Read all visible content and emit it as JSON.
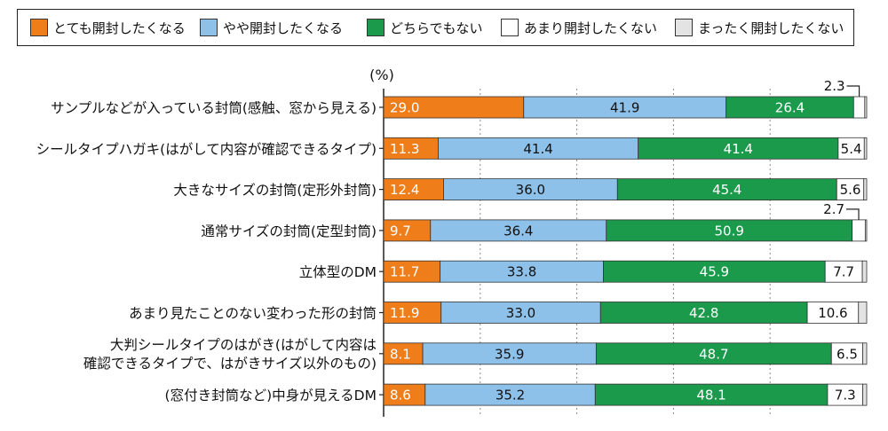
{
  "chart_data": {
    "type": "bar",
    "orientation": "horizontal",
    "stacked": true,
    "unit_label": "(%)",
    "xlim": [
      0,
      100
    ],
    "grid": true,
    "legend_position": "top",
    "categories": [
      [
        "サンプルなどが入っている封筒(感触、窓から見える)"
      ],
      [
        "シールタイプハガキ(はがして内容が確認できるタイプ)"
      ],
      [
        "大きなサイズの封筒(定形外封筒)"
      ],
      [
        "通常サイズの封筒(定型封筒)"
      ],
      [
        "立体型のDM"
      ],
      [
        "あまり見たことのない変わった形の封筒"
      ],
      [
        "大判シールタイプのはがき(はがして内容は",
        "確認できるタイプで、はがきサイズ以外のもの)"
      ],
      [
        "(窓付き封筒など)中身が見えるDM"
      ]
    ],
    "series": [
      {
        "name": "とても開封したくなる",
        "color": "#ee7d1a",
        "values": [
          29.0,
          11.3,
          12.4,
          9.7,
          11.7,
          11.9,
          8.1,
          8.6
        ]
      },
      {
        "name": "やや開封したくなる",
        "color": "#8ec1ea",
        "values": [
          41.9,
          41.4,
          36.0,
          36.4,
          33.8,
          33.0,
          35.9,
          35.2
        ]
      },
      {
        "name": "どちらでもない",
        "color": "#1b9a4c",
        "values": [
          26.4,
          41.4,
          45.4,
          50.9,
          45.9,
          42.8,
          48.7,
          48.1
        ]
      },
      {
        "name": "あまり開封したくない",
        "color": "#ffffff",
        "values": [
          2.3,
          5.4,
          5.6,
          2.7,
          7.7,
          10.6,
          6.5,
          7.3
        ]
      },
      {
        "name": "まったく開封したくない",
        "color": "#e3e3e3",
        "values": [
          0.4,
          0.5,
          0.6,
          0.3,
          0.9,
          1.7,
          0.8,
          0.8
        ]
      }
    ],
    "labels": [
      [
        "29.0",
        "41.9",
        "26.4",
        "",
        ""
      ],
      [
        "11.3",
        "41.4",
        "41.4",
        "5.4",
        ""
      ],
      [
        "12.4",
        "36.0",
        "45.4",
        "5.6",
        ""
      ],
      [
        "9.7",
        "36.4",
        "50.9",
        "",
        ""
      ],
      [
        "11.7",
        "33.8",
        "45.9",
        "7.7",
        ""
      ],
      [
        "11.9",
        "33.0",
        "42.8",
        "10.6",
        ""
      ],
      [
        "8.1",
        "35.9",
        "48.7",
        "6.5",
        ""
      ],
      [
        "8.6",
        "35.2",
        "48.1",
        "7.3",
        ""
      ]
    ],
    "callouts": [
      {
        "row": 0,
        "series": 3,
        "text": "2.3"
      },
      {
        "row": 3,
        "series": 3,
        "text": "2.7"
      }
    ]
  }
}
